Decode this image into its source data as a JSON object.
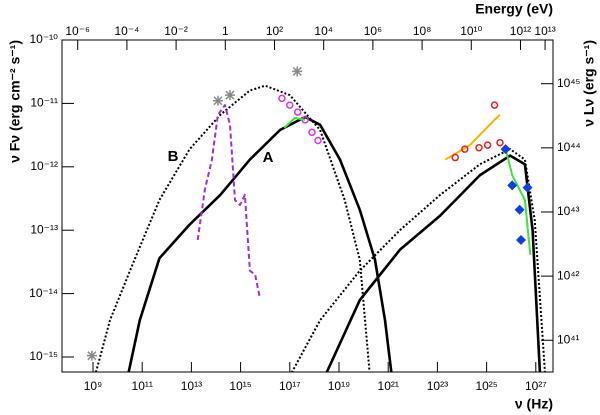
{
  "chart_data": {
    "type": "scatter",
    "x_label": "ν (Hz)",
    "x2_label": "Energy (eV)",
    "y_label": "ν Fν (erg cm⁻² s⁻¹)",
    "y2_label": "ν Lν (erg s⁻¹)",
    "annotations": [
      "A",
      "B"
    ],
    "log_x": true,
    "log_y": true,
    "xlim": [
      55000000.0,
      5e+27
    ],
    "x2lim": [
      2.3e-07,
      21000000000000.0
    ],
    "ylim": [
      1e-10,
      5.8e-16
    ],
    "y2lim": [
      4.8e+45,
      3.2e+40
    ],
    "xticks": [
      {
        "value": 1000000000.0,
        "label": "10⁹"
      },
      {
        "value": 100000000000.0,
        "label": "10¹¹"
      },
      {
        "value": 10000000000000.0,
        "label": "10¹³"
      },
      {
        "value": 1000000000000000.0,
        "label": "10¹⁵"
      },
      {
        "value": 1e+17,
        "label": "10¹⁷"
      },
      {
        "value": 1e+19,
        "label": "10¹⁹"
      },
      {
        "value": 1e+21,
        "label": "10²¹"
      },
      {
        "value": 1e+23,
        "label": "10²³"
      },
      {
        "value": 1e+25,
        "label": "10²⁵"
      },
      {
        "value": 1e+27,
        "label": "10²⁷"
      }
    ],
    "x2ticks": [
      {
        "value": 1e-06,
        "label": "10⁻⁶"
      },
      {
        "value": 0.0001,
        "label": "10⁻⁴"
      },
      {
        "value": 0.01,
        "label": "10⁻²"
      },
      1,
      {
        "value": 100.0,
        "label": "10²"
      },
      {
        "value": 10000.0,
        "label": "10⁴"
      },
      {
        "value": 1000000.0,
        "label": "10⁶"
      },
      {
        "value": 100000000.0,
        "label": "10⁸"
      },
      {
        "value": 10000000000.0,
        "label": "10¹⁰"
      },
      {
        "value": 1000000000000.0,
        "label": "10¹²"
      },
      {
        "value": 10000000000000.0,
        "label": "10¹³"
      }
    ],
    "yticks": [
      {
        "value": 1e-15,
        "label": "10⁻¹⁵"
      },
      {
        "value": 1e-14,
        "label": "10⁻¹⁴"
      },
      {
        "value": 1e-13,
        "label": "10⁻¹³"
      },
      {
        "value": 1e-12,
        "label": "10⁻¹²"
      },
      {
        "value": 1e-11,
        "label": "10⁻¹¹"
      },
      {
        "value": 1e-10,
        "label": "10⁻¹⁰"
      }
    ],
    "y2ticks": [
      {
        "value": 1e+41,
        "label": "10⁴¹"
      },
      {
        "value": 1e+42,
        "label": "10⁴²"
      },
      {
        "value": 1e+43,
        "label": "10⁴³"
      },
      {
        "value": 1e+44,
        "label": "10⁴⁴"
      },
      {
        "value": 1e+45,
        "label": "10⁴⁵"
      }
    ],
    "series": [
      {
        "color": "#000000",
        "style": "solid",
        "x": [
          26000000000.0,
          80000000000.0,
          500000000000.0,
          8000000000000.0,
          150000000000000.0,
          2400000000000000.0,
          4e+16,
          4.2e+17,
          1.7e+18,
          1.1e+19,
          7e+19,
          2.9e+20,
          7.4e+20,
          1.4e+21
        ],
        "values": [
          5e-16,
          3.8e-15,
          3.6e-14,
          1.2e-13,
          3.6e-13,
          1.3e-12,
          3.8e-12,
          6.1e-12,
          4.6e-12,
          1.3e-12,
          2.1e-13,
          3.4e-14,
          3.8e-15,
          5e-16
        ]
      },
      {
        "color": "#000000",
        "style": "solid",
        "x": [
          2.7e+18,
          7e+19,
          3e+21,
          1.3e+23,
          5.4e+24,
          9e+25,
          3.6e+26,
          7.4e+26,
          1.5e+27
        ],
        "values": [
          5e-16,
          7.9e-15,
          4.9e-14,
          1.7e-13,
          7.4e-13,
          1.5e-12,
          1.1e-12,
          1e-13,
          5e-16
        ]
      },
      {
        "color": "#000000",
        "style": "dotted",
        "x": [
          1200000000.0,
          4900000000.0,
          32000000000.0,
          500000000000.0,
          8500000000000.0,
          150000000000000.0,
          2400000000000000.0,
          1e+16,
          1e+17,
          1.7e+18,
          1.7e+19,
          7e+19,
          1.8e+20
        ],
        "values": [
          5e-16,
          3.8e-15,
          2.3e-14,
          3e-13,
          1.9e-12,
          6.6e-12,
          1.6e-11,
          1.9e-11,
          1.35e-11,
          3.8e-12,
          3e-13,
          3.4e-14,
          5e-16
        ]
      },
      {
        "color": "#000000",
        "style": "dotted",
        "x": [
          1e+17,
          1.7e+18,
          7e+19,
          3e+21,
          1.3e+23,
          5.4e+24,
          9e+25,
          3.6e+26,
          9e+26,
          2.4e+27
        ],
        "values": [
          5e-16,
          3.8e-15,
          2.3e-14,
          1e-13,
          3.6e-13,
          1.1e-12,
          1.9e-12,
          1.3e-12,
          1.45e-13,
          5e-16
        ]
      },
      {
        "color": "#9b30d9",
        "style": "dashed",
        "x": [
          18000000000000.0,
          35000000000000.0,
          68000000000000.0,
          120000000000000.0,
          230000000000000.0,
          370000000000000.0,
          590000000000000.0,
          950000000000000.0,
          1500000000000000.0,
          2400000000000000.0,
          3900000000000000.0,
          6100000000000000.0
        ],
        "values": [
          7e-14,
          4.3e-13,
          1.3e-12,
          6.6e-12,
          9.4e-12,
          4.6e-12,
          3e-13,
          2.5e-13,
          3.6e-13,
          2.3e-14,
          2e-14,
          8.5e-15
        ]
      },
      {
        "color": "#e030e0",
        "style": "markers",
        "marker": "circle",
        "x": [
          4.8e+16,
          1e+17,
          2.1e+17,
          4.2e+17,
          8e+17,
          1.4e+18
        ],
        "values": [
          1.2e-11,
          9.4e-12,
          7.3e-12,
          5.5e-12,
          3.5e-12,
          2.6e-12
        ]
      },
      {
        "color": "#40e040",
        "style": "solid",
        "x": [
          6e+16,
          1.6e+17,
          4.2e+17
        ],
        "values": [
          4.1e-12,
          5.9e-12,
          5.5e-12
        ]
      },
      {
        "color": "#888888",
        "style": "markers",
        "marker": "star",
        "x": [
          120000000000000.0,
          370000000000000.0,
          2e+17,
          900000000.0
        ],
        "values": [
          1.1e-11,
          1.35e-11,
          3.2e-11,
          1.05e-15
        ]
      },
      {
        "color": "#ffb000",
        "style": "solid",
        "x": [
          2.1e+23,
          2.1e+24,
          2.1e+25,
          3.5e+25
        ],
        "values": [
          1.3e-12,
          2.2e-12,
          5.5e-12,
          6.6e-12
        ]
      },
      {
        "color": "#e02020",
        "style": "markers",
        "marker": "circle",
        "x": [
          5.3e+23,
          1.3e+24,
          4.9e+24,
          1.1e+25,
          3.5e+25,
          2.1e+25
        ],
        "values": [
          1.4e-12,
          1.9e-12,
          2e-12,
          2.2e-12,
          2.4e-12,
          9.4e-12
        ]
      },
      {
        "color": "#40e040",
        "style": "solid",
        "x": [
          5.9e+25,
          1.1e+26,
          3.6e+26,
          6e+26
        ],
        "values": [
          1.9e-12,
          7.4e-13,
          3e-13,
          4.1e-14
        ]
      },
      {
        "color": "#1040e0",
        "style": "markers",
        "marker": "diamond",
        "x": [
          5.9e+25,
          1.1e+26,
          2.2e+26,
          4.6e+26,
          2.5e+26
        ],
        "values": [
          1.9e-12,
          5.1e-13,
          2.1e-13,
          4.7e-13,
          7e-14
        ]
      }
    ]
  }
}
